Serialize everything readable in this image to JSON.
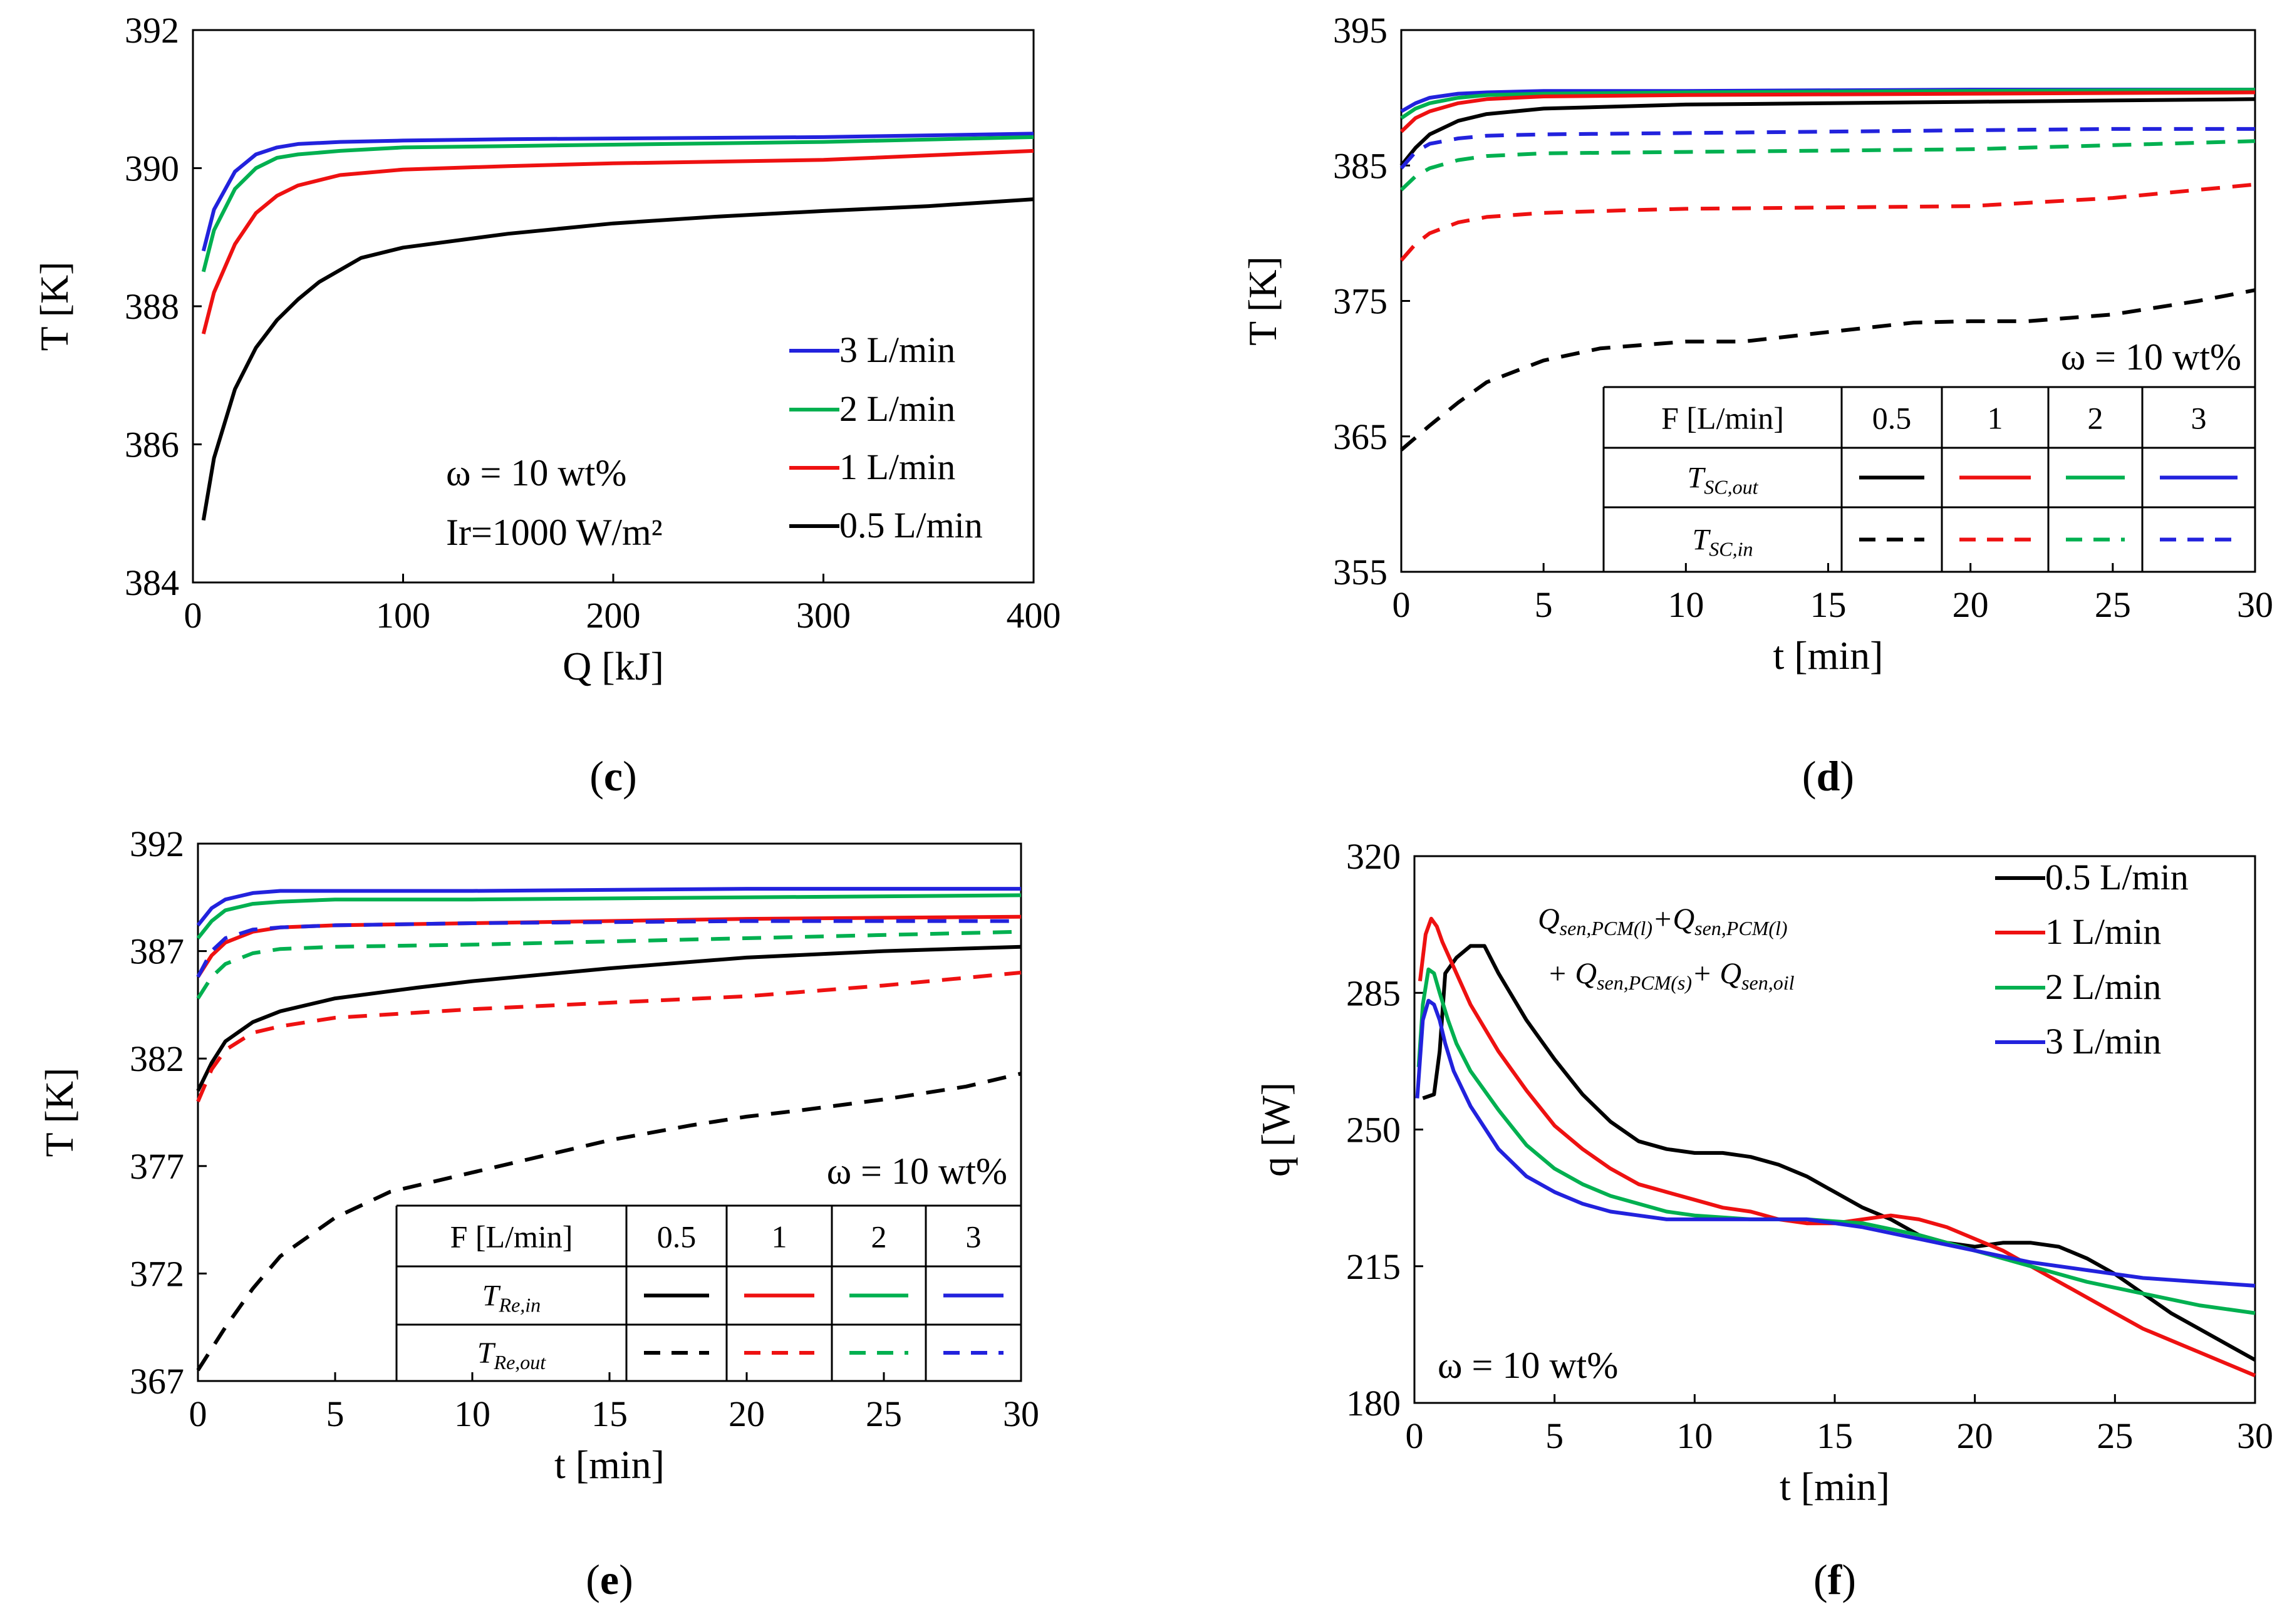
{
  "figure": {
    "colors": {
      "3": "#2222dd",
      "2": "#00b050",
      "1": "#ee1111",
      "0.5": "#000000"
    }
  },
  "chart_data": [
    {
      "id": "c",
      "type": "line",
      "caption": "c",
      "xlabel": "Q [kJ]",
      "ylabel": "T [K]",
      "xlim": [
        0,
        400
      ],
      "ylim": [
        384,
        392
      ],
      "xticks": [
        0,
        100,
        200,
        300,
        400
      ],
      "yticks": [
        384,
        386,
        388,
        390,
        392
      ],
      "annotations": {
        "omega": "ω = 10 wt%",
        "irr": "Ir=1000 W/m²"
      },
      "legend": [
        "3 L/min",
        "2 L/min",
        "1 L/min",
        "0.5 L/min"
      ],
      "series": [
        {
          "name": "3 L/min",
          "flow": "3",
          "dash": false,
          "x": [
            5,
            10,
            20,
            30,
            40,
            50,
            70,
            100,
            150,
            200,
            300,
            400
          ],
          "y": [
            388.8,
            389.4,
            389.95,
            390.2,
            390.3,
            390.35,
            390.38,
            390.4,
            390.42,
            390.43,
            390.45,
            390.5
          ]
        },
        {
          "name": "2 L/min",
          "flow": "2",
          "dash": false,
          "x": [
            5,
            10,
            20,
            30,
            40,
            50,
            70,
            100,
            150,
            200,
            300,
            400
          ],
          "y": [
            388.5,
            389.1,
            389.7,
            390.0,
            390.15,
            390.2,
            390.25,
            390.3,
            390.32,
            390.34,
            390.38,
            390.45
          ]
        },
        {
          "name": "1 L/min",
          "flow": "1",
          "dash": false,
          "x": [
            5,
            10,
            20,
            30,
            40,
            50,
            70,
            100,
            150,
            200,
            300,
            400
          ],
          "y": [
            387.6,
            388.2,
            388.9,
            389.35,
            389.6,
            389.75,
            389.9,
            389.98,
            390.03,
            390.07,
            390.12,
            390.25
          ]
        },
        {
          "name": "0.5 L/min",
          "flow": "0.5",
          "dash": false,
          "x": [
            5,
            10,
            20,
            30,
            40,
            50,
            60,
            80,
            100,
            150,
            200,
            250,
            300,
            350,
            400
          ],
          "y": [
            384.9,
            385.8,
            386.8,
            387.4,
            387.8,
            388.1,
            388.35,
            388.7,
            388.85,
            389.05,
            389.2,
            389.3,
            389.38,
            389.45,
            389.55
          ]
        }
      ]
    },
    {
      "id": "d",
      "type": "line",
      "caption": "d",
      "xlabel": "t [min]",
      "ylabel": "T [K]",
      "xlim": [
        0,
        30
      ],
      "ylim": [
        355,
        395
      ],
      "xticks": [
        0,
        5,
        10,
        15,
        20,
        25,
        30
      ],
      "yticks": [
        355,
        365,
        375,
        385,
        395
      ],
      "annotations": {
        "omega": "ω = 10 wt%"
      },
      "table": {
        "header": [
          "F [L/min]",
          "0.5",
          "1",
          "2",
          "3"
        ],
        "row1": {
          "main": "T",
          "sub": "SC,out"
        },
        "row2": {
          "main": "T",
          "sub": "SC,in"
        }
      },
      "series": [
        {
          "name": "T_SC,out 3",
          "flow": "3",
          "dash": false,
          "x": [
            0,
            0.5,
            1,
            2,
            3,
            5,
            10,
            20,
            30
          ],
          "y": [
            389,
            389.6,
            390,
            390.3,
            390.4,
            390.5,
            390.5,
            390.6,
            390.6
          ]
        },
        {
          "name": "T_SC,out 2",
          "flow": "2",
          "dash": false,
          "x": [
            0,
            0.5,
            1,
            2,
            3,
            5,
            10,
            20,
            30
          ],
          "y": [
            388.5,
            389.2,
            389.6,
            390,
            390.2,
            390.3,
            390.4,
            390.5,
            390.6
          ]
        },
        {
          "name": "T_SC,out 1",
          "flow": "1",
          "dash": false,
          "x": [
            0,
            0.5,
            1,
            2,
            3,
            5,
            10,
            20,
            30
          ],
          "y": [
            387.5,
            388.5,
            389,
            389.6,
            389.9,
            390.1,
            390.2,
            390.3,
            390.4
          ]
        },
        {
          "name": "T_SC,out 0.5",
          "flow": "0.5",
          "dash": false,
          "x": [
            0,
            0.5,
            1,
            2,
            3,
            5,
            10,
            15,
            20,
            25,
            30
          ],
          "y": [
            385,
            386.3,
            387.3,
            388.3,
            388.8,
            389.2,
            389.5,
            389.6,
            389.7,
            389.8,
            389.9
          ]
        },
        {
          "name": "T_SC,in 3",
          "flow": "3",
          "dash": true,
          "x": [
            0,
            0.5,
            1,
            2,
            3,
            5,
            10,
            15,
            20,
            25,
            30
          ],
          "y": [
            384.8,
            386,
            386.6,
            387,
            387.2,
            387.3,
            387.4,
            387.5,
            387.6,
            387.7,
            387.7
          ]
        },
        {
          "name": "T_SC,in 2",
          "flow": "2",
          "dash": true,
          "x": [
            0,
            0.5,
            1,
            2,
            3,
            5,
            10,
            15,
            20,
            25,
            30
          ],
          "y": [
            383.2,
            384.2,
            384.8,
            385.4,
            385.7,
            385.9,
            386,
            386.1,
            386.2,
            386.5,
            386.8
          ]
        },
        {
          "name": "T_SC,in 1",
          "flow": "1",
          "dash": true,
          "x": [
            0,
            0.5,
            1,
            2,
            3,
            5,
            8,
            10,
            15,
            20,
            25,
            30
          ],
          "y": [
            378,
            379.2,
            380,
            380.8,
            381.2,
            381.5,
            381.7,
            381.8,
            381.9,
            382,
            382.6,
            383.6
          ]
        },
        {
          "name": "T_SC,in 0.5",
          "flow": "0.5",
          "dash": true,
          "x": [
            0,
            1,
            2,
            3,
            5,
            7,
            10,
            12,
            15,
            18,
            20,
            22,
            25,
            28,
            30
          ],
          "y": [
            364,
            365.8,
            367.5,
            369,
            370.6,
            371.5,
            372,
            372,
            372.7,
            373.4,
            373.5,
            373.5,
            374,
            375,
            375.8
          ]
        }
      ]
    },
    {
      "id": "e",
      "type": "line",
      "caption": "e",
      "xlabel": "t [min]",
      "ylabel": "T [K]",
      "xlim": [
        0,
        30
      ],
      "ylim": [
        367,
        392
      ],
      "xticks": [
        0,
        5,
        10,
        15,
        20,
        25,
        30
      ],
      "yticks": [
        367,
        372,
        377,
        382,
        387,
        392
      ],
      "annotations": {
        "omega": "ω = 10 wt%"
      },
      "table": {
        "header": [
          "F [L/min]",
          "0.5",
          "1",
          "2",
          "3"
        ],
        "row1": {
          "main": "T",
          "sub": "Re,in"
        },
        "row2": {
          "main": "T",
          "sub": "Re,out"
        }
      },
      "series": [
        {
          "name": "T_Re,in 3",
          "flow": "3",
          "dash": false,
          "x": [
            0,
            0.5,
            1,
            2,
            3,
            5,
            10,
            20,
            30
          ],
          "y": [
            388.2,
            389,
            389.4,
            389.7,
            389.8,
            389.8,
            389.8,
            389.9,
            389.9
          ]
        },
        {
          "name": "T_Re,in 2",
          "flow": "2",
          "dash": false,
          "x": [
            0,
            0.5,
            1,
            2,
            3,
            5,
            10,
            20,
            30
          ],
          "y": [
            387.6,
            388.4,
            388.9,
            389.2,
            389.3,
            389.4,
            389.4,
            389.5,
            389.6
          ]
        },
        {
          "name": "T_Re,in 1",
          "flow": "1",
          "dash": false,
          "x": [
            0,
            0.5,
            1,
            2,
            3,
            5,
            10,
            20,
            30
          ],
          "y": [
            385.8,
            386.8,
            387.4,
            387.9,
            388.1,
            388.2,
            388.3,
            388.5,
            388.6
          ]
        },
        {
          "name": "T_Re,in 0.5",
          "flow": "0.5",
          "dash": false,
          "x": [
            0,
            0.5,
            1,
            2,
            3,
            5,
            8,
            10,
            15,
            20,
            25,
            30
          ],
          "y": [
            380.5,
            381.8,
            382.8,
            383.7,
            384.2,
            384.8,
            385.3,
            385.6,
            386.2,
            386.7,
            387,
            387.2
          ]
        },
        {
          "name": "T_Re,out 3",
          "flow": "3",
          "dash": true,
          "x": [
            0,
            0.5,
            1,
            2,
            3,
            5,
            10,
            20,
            30
          ],
          "y": [
            385.8,
            387,
            387.6,
            388,
            388.1,
            388.2,
            388.3,
            388.4,
            388.4
          ]
        },
        {
          "name": "T_Re,out 2",
          "flow": "2",
          "dash": true,
          "x": [
            0,
            0.5,
            1,
            2,
            3,
            5,
            10,
            20,
            30
          ],
          "y": [
            384.8,
            385.8,
            386.4,
            386.9,
            387.1,
            387.2,
            387.3,
            387.6,
            387.9
          ]
        },
        {
          "name": "T_Re,out 1",
          "flow": "1",
          "dash": true,
          "x": [
            0,
            0.5,
            1,
            2,
            3,
            5,
            10,
            15,
            20,
            25,
            30
          ],
          "y": [
            380,
            381.5,
            382.4,
            383.2,
            383.5,
            383.9,
            384.3,
            384.6,
            384.9,
            385.4,
            386
          ]
        },
        {
          "name": "T_Re,out 0.5",
          "flow": "0.5",
          "dash": true,
          "x": [
            0,
            1,
            2,
            3,
            5,
            7,
            10,
            12,
            15,
            18,
            20,
            22,
            25,
            28,
            30
          ],
          "y": [
            367.5,
            369.5,
            371.3,
            372.8,
            374.6,
            375.8,
            376.7,
            377.3,
            378.2,
            378.9,
            379.3,
            379.6,
            380.1,
            380.7,
            381.3
          ]
        }
      ]
    },
    {
      "id": "f",
      "type": "line",
      "caption": "f",
      "xlabel": "t [min]",
      "ylabel": "q [W]",
      "xlim": [
        0,
        30
      ],
      "ylim": [
        180,
        320
      ],
      "xticks": [
        0,
        5,
        10,
        15,
        20,
        25,
        30
      ],
      "yticks": [
        180,
        215,
        250,
        285,
        320
      ],
      "annotations": {
        "omega": "ω = 10 wt%",
        "eq1a": "Q",
        "eq1b": "sen,PCM(l)",
        "eq1c": "+Q",
        "eq1d": "sen,PCM(l)",
        "eq2a": "+ Q",
        "eq2b": "sen,PCM(s)",
        "eq2c": "+ Q",
        "eq2d": "sen,oil"
      },
      "legend": [
        "0.5 L/min",
        "1 L/min",
        "2 L/min",
        "3 L/min"
      ],
      "series": [
        {
          "name": "0.5 L/min",
          "flow": "0.5",
          "dash": false,
          "x": [
            0.3,
            0.7,
            0.9,
            1.1,
            1.5,
            2,
            2.5,
            3,
            4,
            5,
            6,
            7,
            8,
            9,
            10,
            11,
            12,
            13,
            14,
            15,
            16,
            17,
            18,
            19,
            20,
            21,
            22,
            23,
            24,
            25,
            26,
            27,
            28,
            29,
            30
          ],
          "y": [
            258,
            259,
            270,
            290,
            294,
            297,
            297,
            290,
            278,
            268,
            259,
            252,
            247,
            245,
            244,
            244,
            243,
            241,
            238,
            234,
            230,
            227,
            223,
            221,
            220,
            221,
            221,
            220,
            217,
            213,
            208,
            203,
            199,
            195,
            191
          ]
        },
        {
          "name": "1 L/min",
          "flow": "1",
          "dash": false,
          "x": [
            0.2,
            0.4,
            0.6,
            0.8,
            1,
            1.5,
            2,
            3,
            4,
            5,
            6,
            7,
            8,
            9,
            10,
            11,
            12,
            13,
            14,
            15,
            16,
            17,
            18,
            19,
            20,
            21,
            22,
            23,
            24,
            25,
            26,
            27,
            28,
            29,
            30
          ],
          "y": [
            288,
            300,
            304,
            302,
            298,
            290,
            282,
            270,
            260,
            251,
            245,
            240,
            236,
            234,
            232,
            230,
            229,
            227,
            226,
            226,
            227,
            228,
            227,
            225,
            222,
            219,
            215,
            211,
            207,
            203,
            199,
            196,
            193,
            190,
            187
          ]
        },
        {
          "name": "2 L/min",
          "flow": "2",
          "dash": false,
          "x": [
            0.15,
            0.3,
            0.5,
            0.7,
            0.9,
            1.2,
            1.5,
            2,
            3,
            4,
            5,
            6,
            7,
            8,
            9,
            10,
            12,
            14,
            16,
            18,
            20,
            22,
            24,
            26,
            28,
            30
          ],
          "y": [
            266,
            282,
            291,
            290,
            285,
            278,
            272,
            265,
            255,
            246,
            240,
            236,
            233,
            231,
            229,
            228,
            227,
            227,
            226,
            223,
            219,
            215,
            211,
            208,
            205,
            203
          ]
        },
        {
          "name": "3 L/min",
          "flow": "3",
          "dash": false,
          "x": [
            0.1,
            0.3,
            0.5,
            0.7,
            0.9,
            1.1,
            1.4,
            2,
            3,
            4,
            5,
            6,
            7,
            8,
            9,
            10,
            12,
            14,
            16,
            18,
            20,
            22,
            24,
            26,
            28,
            30
          ],
          "y": [
            258,
            278,
            283,
            282,
            278,
            272,
            265,
            256,
            245,
            238,
            234,
            231,
            229,
            228,
            227,
            227,
            227,
            227,
            225,
            222,
            219,
            216,
            214,
            212,
            211,
            210
          ]
        }
      ]
    }
  ]
}
